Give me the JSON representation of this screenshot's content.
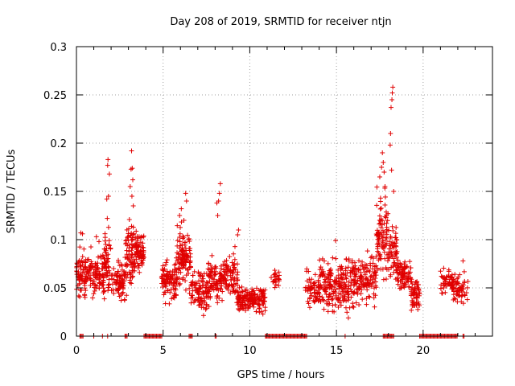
{
  "chart_data": {
    "type": "scatter",
    "title": "Day 208 of 2019, SRMTID for receiver ntjn",
    "xlabel": "GPS time / hours",
    "ylabel": "SRMTID / TECUs",
    "xlim": [
      0,
      24
    ],
    "ylim": [
      0,
      0.3
    ],
    "xticks": [
      0,
      5,
      10,
      15,
      20
    ],
    "xtick_labels": [
      "0",
      "5",
      "10",
      "15",
      "20"
    ],
    "yticks": [
      0,
      0.05,
      0.1,
      0.15,
      0.2,
      0.25,
      0.3
    ],
    "ytick_labels": [
      "0",
      "0.05",
      "0.1",
      "0.15",
      "0.2",
      "0.25",
      "0.3"
    ],
    "grid": true,
    "marker": "+",
    "color": "#e00000",
    "series": [
      {
        "name": "SRMTID",
        "clusters": [
          {
            "x_range": [
              0.0,
              1.0
            ],
            "n": 110,
            "y_range": [
              0.03,
              0.1
            ]
          },
          {
            "x_range": [
              1.0,
              1.6
            ],
            "n": 70,
            "y_range": [
              0.035,
              0.09
            ]
          },
          {
            "x_range": [
              1.6,
              2.0
            ],
            "n": 55,
            "y_range": [
              0.03,
              0.125
            ]
          },
          {
            "x_range": [
              2.0,
              2.8
            ],
            "n": 80,
            "y_range": [
              0.03,
              0.085
            ]
          },
          {
            "x_range": [
              2.8,
              3.3
            ],
            "n": 70,
            "y_range": [
              0.035,
              0.13
            ]
          },
          {
            "x_range": [
              3.3,
              3.9
            ],
            "n": 80,
            "y_range": [
              0.06,
              0.115
            ]
          },
          {
            "x_range": [
              4.9,
              5.8
            ],
            "n": 100,
            "y_range": [
              0.03,
              0.085
            ]
          },
          {
            "x_range": [
              5.8,
              6.6
            ],
            "n": 110,
            "y_range": [
              0.04,
              0.125
            ]
          },
          {
            "x_range": [
              6.6,
              7.6
            ],
            "n": 100,
            "y_range": [
              0.02,
              0.075
            ]
          },
          {
            "x_range": [
              7.6,
              8.4
            ],
            "n": 90,
            "y_range": [
              0.025,
              0.09
            ]
          },
          {
            "x_range": [
              8.4,
              9.3
            ],
            "n": 90,
            "y_range": [
              0.025,
              0.1
            ]
          },
          {
            "x_range": [
              9.3,
              10.1
            ],
            "n": 90,
            "y_range": [
              0.02,
              0.055
            ]
          },
          {
            "x_range": [
              10.1,
              10.9
            ],
            "n": 80,
            "y_range": [
              0.02,
              0.055
            ]
          },
          {
            "x_range": [
              11.2,
              11.7
            ],
            "n": 25,
            "y_range": [
              0.04,
              0.075
            ]
          },
          {
            "x_range": [
              13.2,
              14.0
            ],
            "n": 60,
            "y_range": [
              0.02,
              0.075
            ]
          },
          {
            "x_range": [
              14.0,
              15.0
            ],
            "n": 110,
            "y_range": [
              0.015,
              0.09
            ]
          },
          {
            "x_range": [
              15.0,
              16.0
            ],
            "n": 110,
            "y_range": [
              0.015,
              0.09
            ]
          },
          {
            "x_range": [
              16.0,
              17.3
            ],
            "n": 130,
            "y_range": [
              0.025,
              0.095
            ]
          },
          {
            "x_range": [
              17.3,
              18.0
            ],
            "n": 90,
            "y_range": [
              0.05,
              0.16
            ]
          },
          {
            "x_range": [
              18.0,
              18.5
            ],
            "n": 60,
            "y_range": [
              0.045,
              0.13
            ]
          },
          {
            "x_range": [
              18.5,
              19.3
            ],
            "n": 80,
            "y_range": [
              0.04,
              0.085
            ]
          },
          {
            "x_range": [
              19.3,
              19.8
            ],
            "n": 60,
            "y_range": [
              0.02,
              0.065
            ]
          },
          {
            "x_range": [
              21.0,
              21.7
            ],
            "n": 50,
            "y_range": [
              0.04,
              0.075
            ]
          },
          {
            "x_range": [
              21.7,
              22.6
            ],
            "n": 60,
            "y_range": [
              0.025,
              0.075
            ]
          }
        ],
        "spikes": [
          {
            "x": 0.25,
            "y": 0.107
          },
          {
            "x": 0.35,
            "y": 0.106
          },
          {
            "x": 1.15,
            "y": 0.103
          },
          {
            "x": 1.3,
            "y": 0.098
          },
          {
            "x": 1.75,
            "y": 0.142
          },
          {
            "x": 1.8,
            "y": 0.177
          },
          {
            "x": 1.82,
            "y": 0.183
          },
          {
            "x": 1.85,
            "y": 0.145
          },
          {
            "x": 1.9,
            "y": 0.168
          },
          {
            "x": 1.78,
            "y": 0.122
          },
          {
            "x": 3.1,
            "y": 0.155
          },
          {
            "x": 3.15,
            "y": 0.173
          },
          {
            "x": 3.18,
            "y": 0.192
          },
          {
            "x": 3.22,
            "y": 0.174
          },
          {
            "x": 3.25,
            "y": 0.162
          },
          {
            "x": 3.2,
            "y": 0.145
          },
          {
            "x": 3.28,
            "y": 0.135
          },
          {
            "x": 5.95,
            "y": 0.125
          },
          {
            "x": 6.05,
            "y": 0.132
          },
          {
            "x": 6.3,
            "y": 0.148
          },
          {
            "x": 6.35,
            "y": 0.14
          },
          {
            "x": 6.2,
            "y": 0.12
          },
          {
            "x": 8.1,
            "y": 0.138
          },
          {
            "x": 8.2,
            "y": 0.14
          },
          {
            "x": 8.25,
            "y": 0.148
          },
          {
            "x": 8.3,
            "y": 0.158
          },
          {
            "x": 8.15,
            "y": 0.125
          },
          {
            "x": 9.35,
            "y": 0.11
          },
          {
            "x": 9.3,
            "y": 0.105
          },
          {
            "x": 14.95,
            "y": 0.099
          },
          {
            "x": 17.5,
            "y": 0.165
          },
          {
            "x": 17.6,
            "y": 0.175
          },
          {
            "x": 17.65,
            "y": 0.19
          },
          {
            "x": 17.7,
            "y": 0.18
          },
          {
            "x": 17.8,
            "y": 0.155
          },
          {
            "x": 17.75,
            "y": 0.17
          },
          {
            "x": 18.1,
            "y": 0.198
          },
          {
            "x": 18.12,
            "y": 0.21
          },
          {
            "x": 18.15,
            "y": 0.237
          },
          {
            "x": 18.2,
            "y": 0.245
          },
          {
            "x": 18.22,
            "y": 0.252
          },
          {
            "x": 18.25,
            "y": 0.258
          },
          {
            "x": 18.18,
            "y": 0.172
          },
          {
            "x": 18.3,
            "y": 0.15
          },
          {
            "x": 22.3,
            "y": 0.078
          }
        ],
        "zero_segments": [
          [
            0.2,
            0.4
          ],
          [
            1.0,
            1.05
          ],
          [
            1.5,
            1.55
          ],
          [
            1.8,
            1.85
          ],
          [
            2.8,
            2.95
          ],
          [
            3.9,
            4.95
          ],
          [
            6.5,
            6.7
          ],
          [
            8.0,
            8.1
          ],
          [
            10.9,
            11.0
          ],
          [
            11.0,
            13.3
          ],
          [
            15.5,
            15.55
          ],
          [
            17.7,
            18.3
          ],
          [
            19.8,
            22.0
          ],
          [
            22.3,
            22.4
          ]
        ]
      }
    ]
  }
}
